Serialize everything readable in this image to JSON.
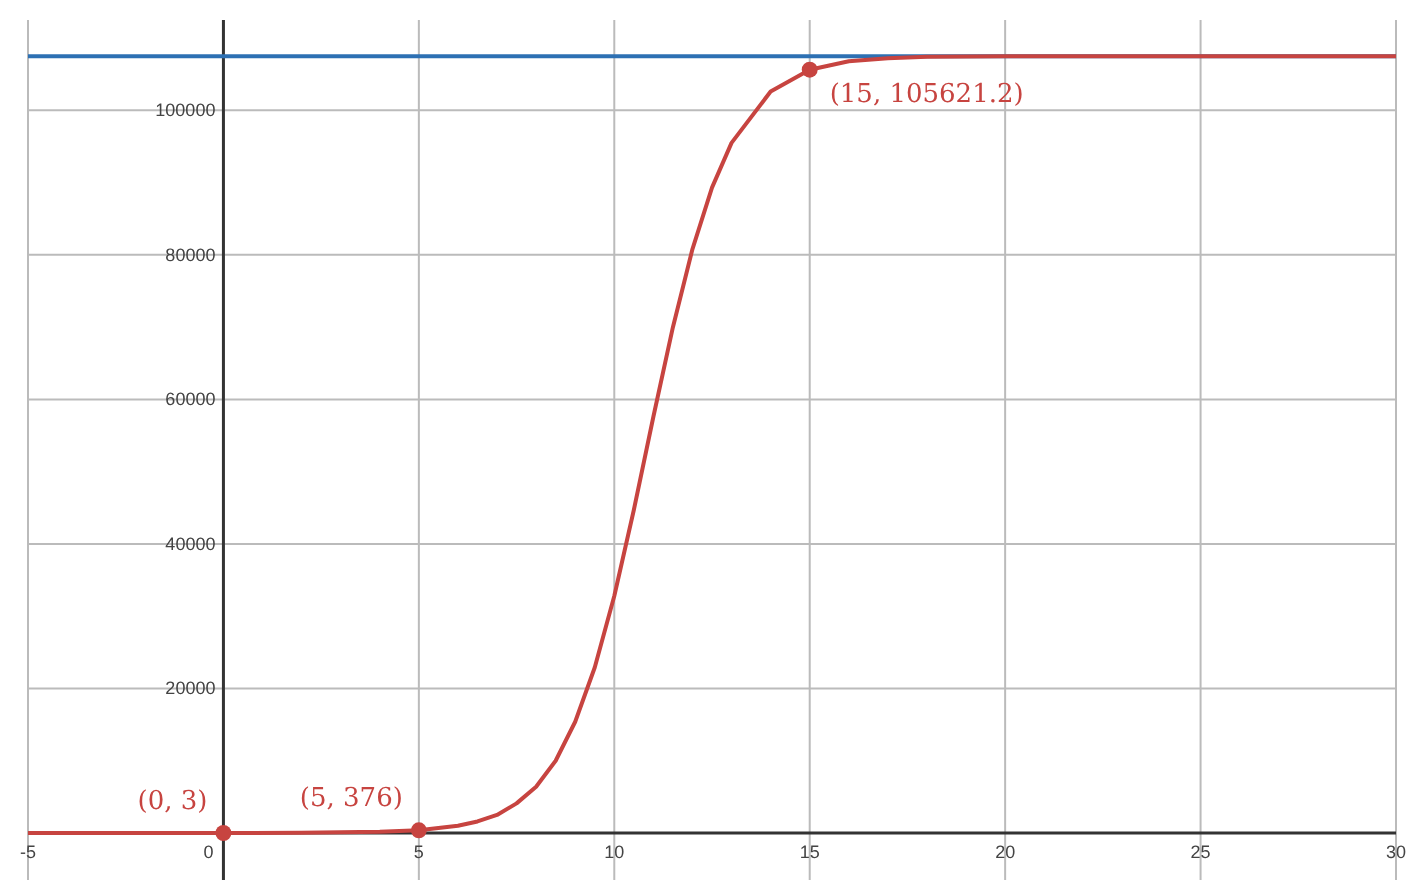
{
  "chart_data": {
    "type": "line",
    "xlim": [
      -5,
      30
    ],
    "ylim": [
      -6500,
      112500
    ],
    "xticks": [
      -5,
      0,
      5,
      10,
      15,
      20,
      25,
      30
    ],
    "yticks": [
      20000,
      40000,
      60000,
      80000,
      100000
    ],
    "grid": true,
    "series": [
      {
        "color": "#c74440",
        "marker": "none",
        "x": [
          -5,
          0,
          2,
          4,
          5,
          6,
          6.5,
          7,
          7.5,
          8,
          8.5,
          9,
          9.5,
          10,
          10.5,
          11,
          11.5,
          12,
          12.5,
          13,
          14,
          15,
          16,
          17,
          18,
          20,
          25,
          30
        ],
        "values": [
          0,
          3,
          40,
          160,
          376,
          1000,
          1600,
          2500,
          4100,
          6400,
          10000,
          15400,
          22900,
          32800,
          44700,
          57600,
          70000,
          80800,
          89300,
          95500,
          102600,
          105621.2,
          106800,
          107200,
          107400,
          107500,
          107500,
          107500
        ]
      },
      {
        "type": "scatter",
        "color": "#c74440",
        "marker": "circle",
        "x": [
          0,
          5,
          15
        ],
        "values": [
          3,
          376,
          105621.2
        ]
      }
    ],
    "ref_lines": [
      {
        "axis": "y",
        "value": 107500,
        "color": "#2d70b3",
        "line_style": "solid"
      }
    ],
    "annotations": [
      {
        "text": "(0, 3)",
        "x": 0,
        "y": 3
      },
      {
        "text": "(5, 376)",
        "x": 5,
        "y": 376
      },
      {
        "text": "(15, 105621.2)",
        "x": 15,
        "y": 105621.2
      }
    ]
  }
}
